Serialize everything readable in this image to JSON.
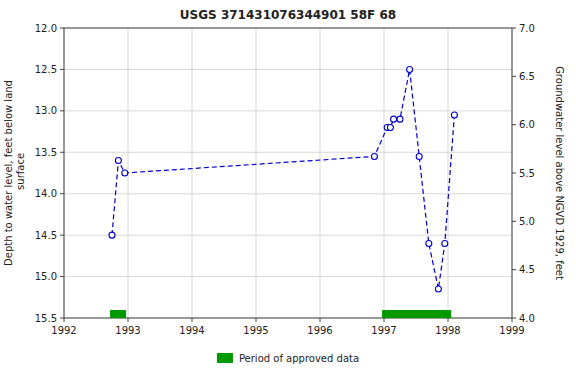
{
  "chart_data": {
    "type": "line",
    "title": "USGS 371431076344901 58F 68",
    "x": [
      1992.75,
      1992.85,
      1992.95,
      1996.85,
      1997.05,
      1997.1,
      1997.15,
      1997.25,
      1997.4,
      1997.55,
      1997.7,
      1997.85,
      1997.95,
      1998.1
    ],
    "series": [
      {
        "values": [
          14.5,
          13.6,
          13.75,
          13.55,
          13.2,
          13.2,
          13.1,
          13.1,
          12.5,
          13.55,
          14.6,
          15.15,
          14.6,
          13.05
        ],
        "color": "#0000CC",
        "marker": "open-circle",
        "line_style": "dashed"
      },
      {
        "name": "Period of approved data",
        "type": "span",
        "color": "#009900",
        "starts": [
          1992.72,
          1996.97
        ],
        "ends": [
          1992.97,
          1998.05
        ]
      }
    ],
    "ylabel": "Depth to water level, feet below land\n surface",
    "y2label": "Groundwater level above NGVD 1929, feet",
    "xlim": [
      1992,
      1999
    ],
    "xticks": [
      1992,
      1993,
      1994,
      1995,
      1996,
      1997,
      1998,
      1999
    ],
    "ylim": [
      15.5,
      12.0
    ],
    "yticks": [
      {
        "value": 12.0,
        "label": "12.0"
      },
      12.5,
      {
        "value": 13.0,
        "label": "13.0"
      },
      13.5,
      {
        "value": 14.0,
        "label": "14.0"
      },
      14.5,
      {
        "value": 15.0,
        "label": "15.0"
      },
      15.5
    ],
    "y2lim": [
      4.0,
      7.0
    ],
    "y2ticks": [
      {
        "value": 4.0,
        "label": "4.0"
      },
      4.5,
      {
        "value": 5.0,
        "label": "5.0"
      },
      5.5,
      {
        "value": 6.0,
        "label": "6.0"
      },
      6.5,
      {
        "value": 7.0,
        "label": "7.0"
      }
    ],
    "grid": true,
    "legend": "bottom"
  }
}
